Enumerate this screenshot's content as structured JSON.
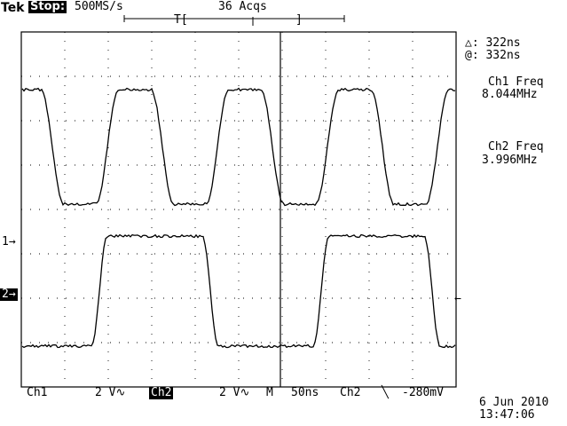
{
  "header": {
    "brand": "Tek",
    "run_state": "Stop:",
    "sample_rate": "500MS/s",
    "acquisitions": "36 Acqs",
    "trigger_bracket_left": "T[",
    "trigger_bracket_right": "]"
  },
  "measurements": {
    "delta": "△: 322ns",
    "at": "@: 332ns",
    "ch1_freq_label": "Ch1 Freq",
    "ch1_freq_value": "8.044MHz",
    "ch2_freq_label": "Ch2 Freq",
    "ch2_freq_value": "3.996MHz"
  },
  "markers": {
    "ch1": "1→",
    "ch2": "2→",
    "trigger_level": "←"
  },
  "footer": {
    "ch1_label": "Ch1",
    "ch1_scale": "2 V∿",
    "ch2_label": "Ch2",
    "ch2_scale": "2 V∿",
    "timebase_label": "M",
    "timebase_value": "50ns",
    "trigger_source": "Ch2",
    "trigger_slope": "╲",
    "trigger_level": "-280mV",
    "date": "6 Jun 2010",
    "time": "13:47:06"
  },
  "colors": {
    "trace": "#000000",
    "grid": "#000000",
    "background": "#ffffff"
  }
}
